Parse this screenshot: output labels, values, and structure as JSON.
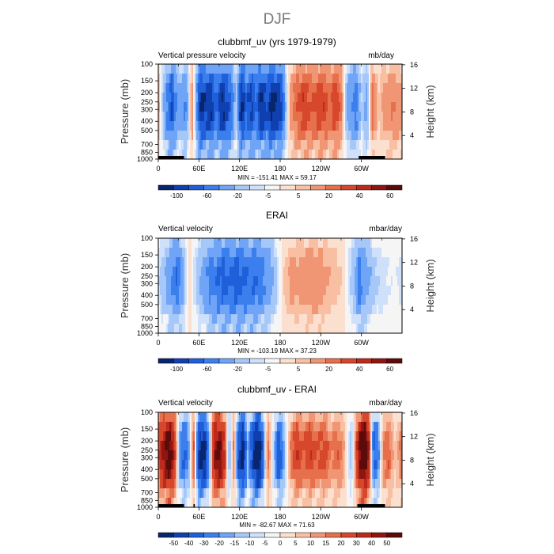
{
  "figure": {
    "season": "DJF",
    "colors": {
      "ramp16": [
        "#08266e",
        "#103fb0",
        "#1f5fd9",
        "#3b7fee",
        "#6fa4f6",
        "#a6c8f9",
        "#cfe0fb",
        "#f5f5f5",
        "#fbe0d0",
        "#f8bfa3",
        "#f09674",
        "#e66f4c",
        "#d7472c",
        "#bb2a1c",
        "#8f1610",
        "#5c0a0a"
      ],
      "ramp_diff": [
        "#08266e",
        "#103fb0",
        "#1f5fd9",
        "#3b7fee",
        "#6fa4f6",
        "#a6c8f9",
        "#cfe0fb",
        "#f5f5f5",
        "#fbe0d0",
        "#f8bfa3",
        "#f09674",
        "#e66f4c",
        "#d7472c",
        "#bb2a1c",
        "#8f1610",
        "#5c0a0a"
      ],
      "topography": "#000000"
    }
  },
  "chart_data": [
    {
      "type": "heatmap",
      "title": "clubbmf_uv (yrs 1979-1979)",
      "left_label": "Vertical pressure velocity",
      "units": "mb/day",
      "ylabel": "Pressure (mb)",
      "y2label": "Height (km)",
      "x_ticks": [
        "0",
        "60E",
        "120E",
        "180",
        "120W",
        "60W"
      ],
      "x_tick_lon": [
        0,
        60,
        120,
        180,
        240,
        300
      ],
      "xlim": [
        0,
        360
      ],
      "y_ticks": [
        "100",
        "150",
        "200",
        "250",
        "300",
        "400",
        "500",
        "700",
        "850",
        "1000"
      ],
      "y_tick_values": [
        100,
        150,
        200,
        250,
        300,
        400,
        500,
        700,
        850,
        1000
      ],
      "y2_ticks": [
        "16",
        "12",
        "8",
        "4"
      ],
      "y2_tick_values": [
        16,
        12,
        8,
        4
      ],
      "ylim": [
        1000,
        100
      ],
      "stats": "MIN = -151.41   MAX =  59.17",
      "colorbar_labels": [
        "-100",
        "-60",
        "-20",
        "-5",
        "5",
        "20",
        "40",
        "60"
      ],
      "colorbar_levels": [
        -120,
        -100,
        -80,
        -60,
        -40,
        -20,
        -10,
        -5,
        0,
        5,
        10,
        20,
        30,
        40,
        50,
        60
      ],
      "profile": [
        [
          0,
          15
        ],
        [
          10,
          -30
        ],
        [
          20,
          -80
        ],
        [
          30,
          -20
        ],
        [
          40,
          -45
        ],
        [
          50,
          20
        ],
        [
          55,
          -20
        ],
        [
          63,
          -110
        ],
        [
          70,
          -90
        ],
        [
          78,
          -100
        ],
        [
          85,
          -60
        ],
        [
          95,
          -105
        ],
        [
          102,
          -80
        ],
        [
          108,
          -60
        ],
        [
          115,
          -10
        ],
        [
          123,
          -110
        ],
        [
          130,
          -70
        ],
        [
          138,
          -90
        ],
        [
          145,
          -55
        ],
        [
          152,
          -110
        ],
        [
          160,
          -80
        ],
        [
          168,
          -120
        ],
        [
          175,
          -100
        ],
        [
          182,
          -90
        ],
        [
          188,
          -20
        ],
        [
          195,
          15
        ],
        [
          205,
          30
        ],
        [
          215,
          40
        ],
        [
          225,
          30
        ],
        [
          235,
          35
        ],
        [
          245,
          38
        ],
        [
          252,
          25
        ],
        [
          262,
          40
        ],
        [
          270,
          25
        ],
        [
          278,
          -20
        ],
        [
          285,
          -35
        ],
        [
          292,
          -55
        ],
        [
          300,
          -10
        ],
        [
          308,
          -30
        ],
        [
          316,
          25
        ],
        [
          325,
          5
        ],
        [
          335,
          15
        ],
        [
          345,
          20
        ],
        [
          360,
          15
        ]
      ],
      "topo_lon": [
        [
          0,
          38
        ],
        [
          296,
          335
        ]
      ]
    },
    {
      "type": "heatmap",
      "title": "ERAI",
      "left_label": "Vertical velocity",
      "units": "mbar/day",
      "ylabel": "Pressure (mb)",
      "y2label": "Height (km)",
      "x_ticks": [
        "0",
        "60E",
        "120E",
        "180",
        "120W",
        "60W"
      ],
      "x_tick_lon": [
        0,
        60,
        120,
        180,
        240,
        300
      ],
      "xlim": [
        0,
        360
      ],
      "y_ticks": [
        "100",
        "150",
        "200",
        "250",
        "300",
        "400",
        "500",
        "700",
        "850",
        "1000"
      ],
      "y_tick_values": [
        100,
        150,
        200,
        250,
        300,
        400,
        500,
        700,
        850,
        1000
      ],
      "y2_ticks": [
        "16",
        "12",
        "8",
        "4"
      ],
      "y2_tick_values": [
        16,
        12,
        8,
        4
      ],
      "ylim": [
        1000,
        100
      ],
      "stats": "MIN = -103.19   MAX =  37.23",
      "colorbar_labels": [
        "-100",
        "-60",
        "-20",
        "-5",
        "5",
        "20",
        "40",
        "60"
      ],
      "colorbar_levels": [
        -120,
        -100,
        -80,
        -60,
        -40,
        -20,
        -10,
        -5,
        0,
        5,
        10,
        20,
        30,
        40,
        50,
        60
      ],
      "profile": [
        [
          0,
          -8
        ],
        [
          10,
          -20
        ],
        [
          20,
          -40
        ],
        [
          28,
          -60
        ],
        [
          35,
          -30
        ],
        [
          45,
          5
        ],
        [
          55,
          -10
        ],
        [
          65,
          -25
        ],
        [
          75,
          -45
        ],
        [
          85,
          -55
        ],
        [
          95,
          -70
        ],
        [
          105,
          -60
        ],
        [
          115,
          -75
        ],
        [
          125,
          -65
        ],
        [
          135,
          -55
        ],
        [
          145,
          -60
        ],
        [
          155,
          -45
        ],
        [
          165,
          -30
        ],
        [
          175,
          -10
        ],
        [
          185,
          5
        ],
        [
          195,
          12
        ],
        [
          210,
          14
        ],
        [
          225,
          16
        ],
        [
          235,
          18
        ],
        [
          245,
          12
        ],
        [
          260,
          8
        ],
        [
          270,
          5
        ],
        [
          280,
          -5
        ],
        [
          290,
          -20
        ],
        [
          296,
          -50
        ],
        [
          303,
          -35
        ],
        [
          310,
          -25
        ],
        [
          320,
          -12
        ],
        [
          335,
          -6
        ],
        [
          350,
          -4
        ],
        [
          360,
          -8
        ]
      ],
      "topo_lon": []
    },
    {
      "type": "heatmap",
      "title": "clubbmf_uv - ERAI",
      "left_label": "Vertical velocity",
      "units": "mbar/day",
      "ylabel": "Pressure (mb)",
      "y2label": "Height (km)",
      "x_ticks": [
        "0",
        "60E",
        "120E",
        "180",
        "120W",
        "60W"
      ],
      "x_tick_lon": [
        0,
        60,
        120,
        180,
        240,
        300
      ],
      "xlim": [
        0,
        360
      ],
      "y_ticks": [
        "100",
        "150",
        "200",
        "250",
        "300",
        "400",
        "500",
        "700",
        "850",
        "1000"
      ],
      "y_tick_values": [
        100,
        150,
        200,
        250,
        300,
        400,
        500,
        700,
        850,
        1000
      ],
      "y2_ticks": [
        "16",
        "12",
        "8",
        "4"
      ],
      "y2_tick_values": [
        16,
        12,
        8,
        4
      ],
      "ylim": [
        1000,
        100
      ],
      "stats": "MIN = -82.67   MAX =  71.63",
      "colorbar_labels": [
        "-50",
        "-40",
        "-30",
        "-20",
        "-15",
        "-10",
        "-5",
        "0",
        "5",
        "10",
        "15",
        "20",
        "30",
        "40",
        "50"
      ],
      "colorbar_levels": [
        -60,
        -50,
        -40,
        -30,
        -20,
        -15,
        -10,
        -5,
        0,
        5,
        10,
        15,
        20,
        30,
        40,
        50
      ],
      "profile": [
        [
          0,
          25
        ],
        [
          8,
          45
        ],
        [
          16,
          60
        ],
        [
          24,
          35
        ],
        [
          30,
          -15
        ],
        [
          38,
          -35
        ],
        [
          45,
          -20
        ],
        [
          52,
          25
        ],
        [
          60,
          -50
        ],
        [
          68,
          -60
        ],
        [
          75,
          -20
        ],
        [
          82,
          40
        ],
        [
          90,
          55
        ],
        [
          98,
          30
        ],
        [
          105,
          -20
        ],
        [
          112,
          20
        ],
        [
          118,
          -40
        ],
        [
          125,
          -60
        ],
        [
          132,
          -15
        ],
        [
          140,
          -45
        ],
        [
          147,
          -70
        ],
        [
          155,
          -30
        ],
        [
          162,
          20
        ],
        [
          170,
          -10
        ],
        [
          178,
          -40
        ],
        [
          185,
          -20
        ],
        [
          195,
          15
        ],
        [
          205,
          30
        ],
        [
          215,
          20
        ],
        [
          225,
          28
        ],
        [
          235,
          20
        ],
        [
          245,
          25
        ],
        [
          255,
          15
        ],
        [
          265,
          20
        ],
        [
          275,
          10
        ],
        [
          285,
          -15
        ],
        [
          292,
          20
        ],
        [
          298,
          55
        ],
        [
          305,
          70
        ],
        [
          312,
          30
        ],
        [
          318,
          -35
        ],
        [
          325,
          -25
        ],
        [
          332,
          15
        ],
        [
          340,
          20
        ],
        [
          350,
          5
        ],
        [
          360,
          20
        ]
      ],
      "topo_lon": [
        [
          0,
          38
        ],
        [
          52,
          54
        ],
        [
          294,
          335
        ]
      ]
    }
  ]
}
